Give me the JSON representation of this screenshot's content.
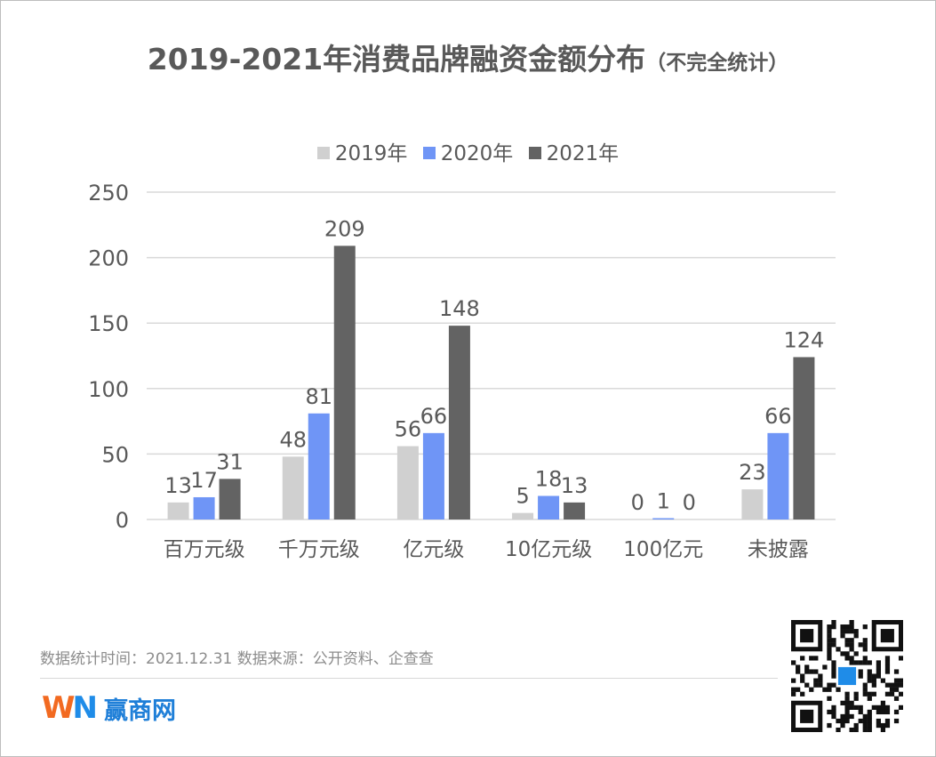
{
  "title": "2019-2021年消费品牌融资金额分布",
  "subtitle": "（不完全统计）",
  "footer": {
    "note": "数据统计时间：2021.12.31  数据来源：公开资料、企查查",
    "logo_mark_w": "W",
    "logo_mark_n": "N",
    "brand_name": "赢商网",
    "qr_badge_icon": "qr-code-icon"
  },
  "colors": {
    "s2019": "#d0d0d0",
    "s2020": "#6f95f6",
    "s2021": "#636363",
    "text": "#595959",
    "grid": "#d9d9d9"
  },
  "chart_data": {
    "type": "bar",
    "categories": [
      "百万元级",
      "千万元级",
      "亿元级",
      "10亿元级",
      "100亿元",
      "未披露"
    ],
    "series": [
      {
        "name": "2019年",
        "values": [
          13,
          48,
          56,
          5,
          0,
          23
        ]
      },
      {
        "name": "2020年",
        "values": [
          17,
          81,
          66,
          18,
          1,
          66
        ]
      },
      {
        "name": "2021年",
        "values": [
          31,
          209,
          148,
          13,
          0,
          124
        ]
      }
    ],
    "yticks": [
      0,
      50,
      100,
      150,
      200,
      250
    ],
    "ylim": [
      0,
      250
    ],
    "grid": true,
    "legend": "top-center"
  }
}
